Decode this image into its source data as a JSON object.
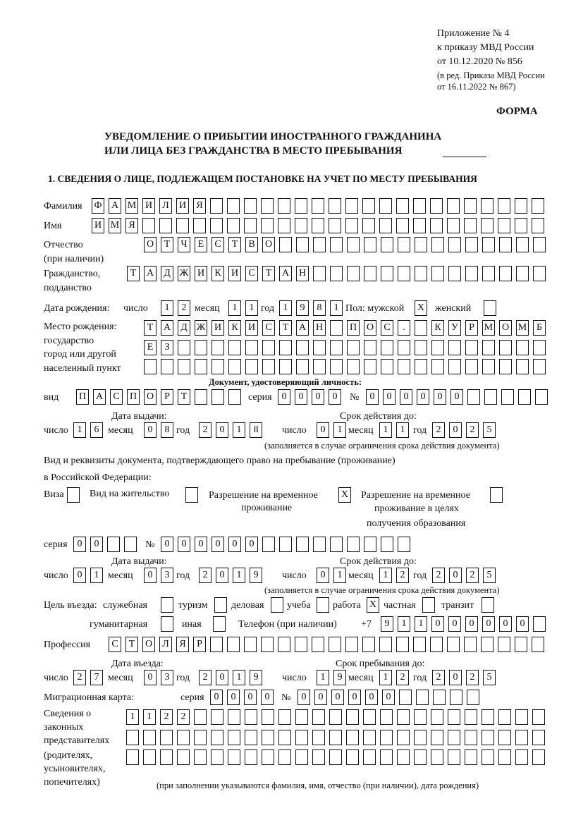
{
  "header": {
    "appendix": [
      "Приложение № 4",
      "к приказу МВД России",
      "от 10.12.2020 № 856"
    ],
    "revision": [
      "(в ред. Приказа МВД России",
      "от 16.11.2022 № 867)"
    ],
    "form_label": "ФОРМА",
    "title_line1": "УВЕДОМЛЕНИЕ О ПРИБЫТИИ ИНОСТРАННОГО ГРАЖДАНИНА",
    "title_line2": "ИЛИ ЛИЦА БЕЗ ГРАЖДАНСТВА В МЕСТО ПРЕБЫВАНИЯ"
  },
  "section1": {
    "heading": "1. СВЕДЕНИЯ О ЛИЦЕ, ПОДЛЕЖАЩЕМ ПОСТАНОВКЕ НА УЧЕТ ПО МЕСТУ ПРЕБЫВАНИЯ",
    "surname": {
      "label": "Фамилия",
      "cells": [
        "Ф",
        "А",
        "М",
        "И",
        "Л",
        "И",
        "Я",
        "",
        "",
        "",
        "",
        "",
        "",
        "",
        "",
        "",
        "",
        "",
        "",
        "",
        "",
        "",
        "",
        "",
        "",
        "",
        ""
      ]
    },
    "name": {
      "label": "Имя",
      "cells": [
        "И",
        "М",
        "Я",
        "",
        "",
        "",
        "",
        "",
        "",
        "",
        "",
        "",
        "",
        "",
        "",
        "",
        "",
        "",
        "",
        "",
        "",
        "",
        "",
        "",
        "",
        "",
        ""
      ]
    },
    "patronymic": {
      "label": "Отчество",
      "label2": "(при наличии)",
      "cells": [
        "О",
        "Т",
        "Ч",
        "Е",
        "С",
        "Т",
        "В",
        "О",
        "",
        "",
        "",
        "",
        "",
        "",
        "",
        "",
        "",
        "",
        "",
        "",
        "",
        "",
        "",
        ""
      ]
    },
    "citizenship": {
      "label": "Гражданство,",
      "label2": "подданство",
      "cells": [
        "Т",
        "А",
        "Д",
        "Ж",
        "И",
        "К",
        "И",
        "С",
        "Т",
        "А",
        "Н",
        "",
        "",
        "",
        "",
        "",
        "",
        "",
        "",
        "",
        "",
        "",
        "",
        "",
        ""
      ]
    },
    "birth_date": {
      "label": "Дата рождения:",
      "day_label": "число",
      "month_label": "месяц",
      "year_label": "год",
      "day": [
        "1",
        "2"
      ],
      "month": [
        "1",
        "1"
      ],
      "year": [
        "1",
        "9",
        "8",
        "1"
      ],
      "sex_label": "Пол: мужской",
      "male": "X",
      "female_label": "женский",
      "female": ""
    },
    "birth_place": {
      "labels": [
        "Место рождения:",
        "государство",
        "город или другой",
        "населенный пункт"
      ],
      "rows": [
        [
          "Т",
          "А",
          "Д",
          "Ж",
          "И",
          "К",
          "И",
          "С",
          "Т",
          "А",
          "Н",
          "",
          "П",
          "О",
          "С",
          ".",
          "",
          "К",
          "У",
          "Р",
          "М",
          "О",
          "М",
          "Б"
        ],
        [
          "Е",
          "З",
          "",
          "",
          "",
          "",
          "",
          "",
          "",
          "",
          "",
          "",
          "",
          "",
          "",
          "",
          "",
          "",
          "",
          "",
          "",
          "",
          "",
          ""
        ],
        [
          "",
          "",
          "",
          "",
          "",
          "",
          "",
          "",
          "",
          "",
          "",
          "",
          "",
          "",
          "",
          "",
          "",
          "",
          "",
          "",
          "",
          "",
          "",
          ""
        ]
      ]
    },
    "identity_doc": {
      "heading": "Документ, удостоверяющий личность:",
      "type_label": "вид",
      "type": [
        "П",
        "А",
        "С",
        "П",
        "О",
        "Р",
        "Т",
        "",
        "",
        ""
      ],
      "series_label": "серия",
      "series": [
        "0",
        "0",
        "0",
        "0"
      ],
      "number_label": "№",
      "number": [
        "0",
        "0",
        "0",
        "0",
        "0",
        "0",
        "",
        "",
        "",
        "",
        ""
      ],
      "issue_label": "Дата выдачи:",
      "valid_label": "Срок действия до:",
      "issue": {
        "day": [
          "1",
          "6"
        ],
        "month": [
          "0",
          "8"
        ],
        "year": [
          "2",
          "0",
          "1",
          "8"
        ]
      },
      "valid": {
        "day": [
          "0",
          "1"
        ],
        "month": [
          "1",
          "1"
        ],
        "year": [
          "2",
          "0",
          "2",
          "5"
        ]
      },
      "note": "(заполняется в случае ограничения срока действия документа)"
    },
    "stay_doc": {
      "intro1": "Вид и реквизиты документа, подтверждающего право на пребывание (проживание)",
      "intro2": "в Российской Федерации:",
      "visa_label": "Виза",
      "visa": "",
      "residence_label": "Вид на жительство",
      "residence": "",
      "trp_label1": "Разрешение на временное",
      "trp_label2": "проживание",
      "trp": "X",
      "trp_edu_label1": "Разрешение на временное",
      "trp_edu_label2": "проживание в целях",
      "trp_edu_label3": "получения образования",
      "trp_edu": "",
      "series_label": "серия",
      "series": [
        "0",
        "0",
        "",
        ""
      ],
      "number_label": "№",
      "number": [
        "0",
        "0",
        "0",
        "0",
        "0",
        "0",
        "",
        "",
        "",
        "",
        "",
        "",
        "",
        "",
        ""
      ],
      "issue_label": "Дата выдачи:",
      "valid_label": "Срок действия до:",
      "issue": {
        "day": [
          "0",
          "1"
        ],
        "month": [
          "0",
          "3"
        ],
        "year": [
          "2",
          "0",
          "1",
          "9"
        ]
      },
      "valid": {
        "day": [
          "0",
          "1"
        ],
        "month": [
          "1",
          "2"
        ],
        "year": [
          "2",
          "0",
          "2",
          "5"
        ]
      },
      "note": "(заполняется в случае ограничения срока действия документа)"
    },
    "purpose": {
      "label": "Цель въезда:",
      "options": [
        {
          "label": "служебная",
          "value": ""
        },
        {
          "label": "туризм",
          "value": ""
        },
        {
          "label": "деловая",
          "value": ""
        },
        {
          "label": "учеба",
          "value": ""
        },
        {
          "label": "работа",
          "value": "X"
        },
        {
          "label": "частная",
          "value": ""
        },
        {
          "label": "транзит",
          "value": ""
        },
        {
          "label": "гуманитарная",
          "value": ""
        },
        {
          "label": "иная",
          "value": ""
        }
      ]
    },
    "phone": {
      "label": "Телефон (при наличии)",
      "prefix": "+7",
      "cells": [
        "9",
        "1",
        "1",
        "0",
        "0",
        "0",
        "0",
        "0",
        "0",
        ""
      ]
    },
    "profession": {
      "label": "Профессия",
      "cells": [
        "С",
        "Т",
        "О",
        "Л",
        "Я",
        "Р",
        "",
        "",
        "",
        "",
        "",
        "",
        "",
        "",
        "",
        "",
        "",
        "",
        "",
        "",
        "",
        "",
        "",
        "",
        "",
        ""
      ]
    },
    "entry": {
      "entry_label": "Дата въезда:",
      "stay_label": "Срок пребывания до:",
      "entry_date": {
        "day": [
          "2",
          "7"
        ],
        "month": [
          "0",
          "3"
        ],
        "year": [
          "2",
          "0",
          "1",
          "9"
        ]
      },
      "stay_until": {
        "day": [
          "1",
          "9"
        ],
        "month": [
          "1",
          "2"
        ],
        "year": [
          "2",
          "0",
          "2",
          "5"
        ]
      }
    },
    "migration_card": {
      "label": "Миграционная карта:",
      "series_label": "серия",
      "series": [
        "0",
        "0",
        "0",
        "0"
      ],
      "number_label": "№",
      "number": [
        "0",
        "0",
        "0",
        "0",
        "0",
        "0",
        "",
        "",
        "",
        "",
        ""
      ]
    },
    "representatives": {
      "labels": [
        "Сведения о",
        "законных",
        "представителях",
        "(родителях,",
        "усыновителях,",
        "попечителях)"
      ],
      "rows": [
        [
          "1",
          "1",
          "2",
          "2",
          "",
          "",
          "",
          "",
          "",
          "",
          "",
          "",
          "",
          "",
          "",
          "",
          "",
          "",
          "",
          "",
          "",
          "",
          "",
          "",
          ""
        ],
        [
          "",
          "",
          "",
          "",
          "",
          "",
          "",
          "",
          "",
          "",
          "",
          "",
          "",
          "",
          "",
          "",
          "",
          "",
          "",
          "",
          "",
          "",
          "",
          "",
          ""
        ],
        [
          "",
          "",
          "",
          "",
          "",
          "",
          "",
          "",
          "",
          "",
          "",
          "",
          "",
          "",
          "",
          "",
          "",
          "",
          "",
          "",
          "",
          "",
          "",
          "",
          ""
        ]
      ],
      "note": "(при заполнении указываются фамилия, имя, отчество (при наличии), дата рождения)"
    }
  },
  "common": {
    "day_label": "число",
    "month_label": "месяц",
    "year_label": "год"
  }
}
